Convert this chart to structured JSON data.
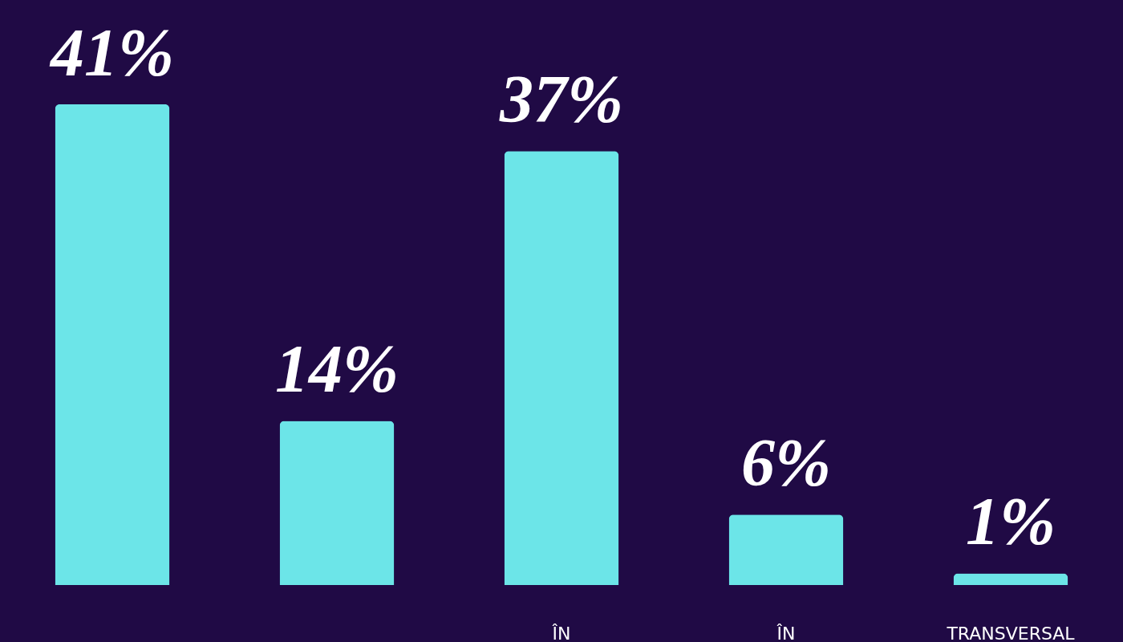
{
  "chart_data": {
    "type": "bar",
    "categories": [
      null,
      null,
      "ÎN",
      "ÎN",
      "TRANSVERSAL"
    ],
    "values": [
      41,
      14,
      37,
      6,
      1
    ],
    "color": "#6ce5e8",
    "value_labels": [
      "41%",
      "14%",
      "37%",
      "6%",
      "1%"
    ]
  }
}
